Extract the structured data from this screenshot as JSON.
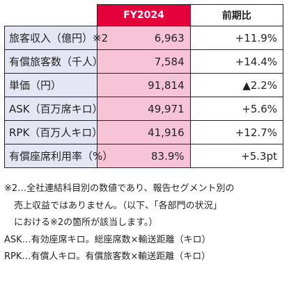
{
  "table": {
    "header": {
      "period": "FY2024",
      "ratio": "前期比"
    },
    "rows": [
      {
        "label": "旅客収入（億円）※2",
        "value": "6,963",
        "ratio": "+11.9%"
      },
      {
        "label": "有償旅客数（千人）",
        "value": "7,584",
        "ratio": "+14.4%"
      },
      {
        "label": "単価（円）",
        "value": "91,814",
        "ratio": "▲2.2%"
      },
      {
        "label": "ASK（百万席キロ）",
        "value": "49,971",
        "ratio": "+5.6%"
      },
      {
        "label": "RPK（百万人キロ）",
        "value": "41,916",
        "ratio": "+12.7%"
      },
      {
        "label": "有償座席利用率（%）",
        "value": "83.9%",
        "ratio": "+5.3pt"
      }
    ]
  },
  "notes": {
    "note2_line1": "※2…全社連結科目別の数値であり、報告セグメント別の",
    "note2_line2": "売上収益ではありません。（以下、「各部門の状況」",
    "note2_line3": "における※2の箇所が該当します。）",
    "ask": "ASK…有効座席キロ。総座席数×輸送距離（キロ）",
    "rpk": "RPK…有償人キロ。有償旅客数×輸送距離（キロ）"
  }
}
